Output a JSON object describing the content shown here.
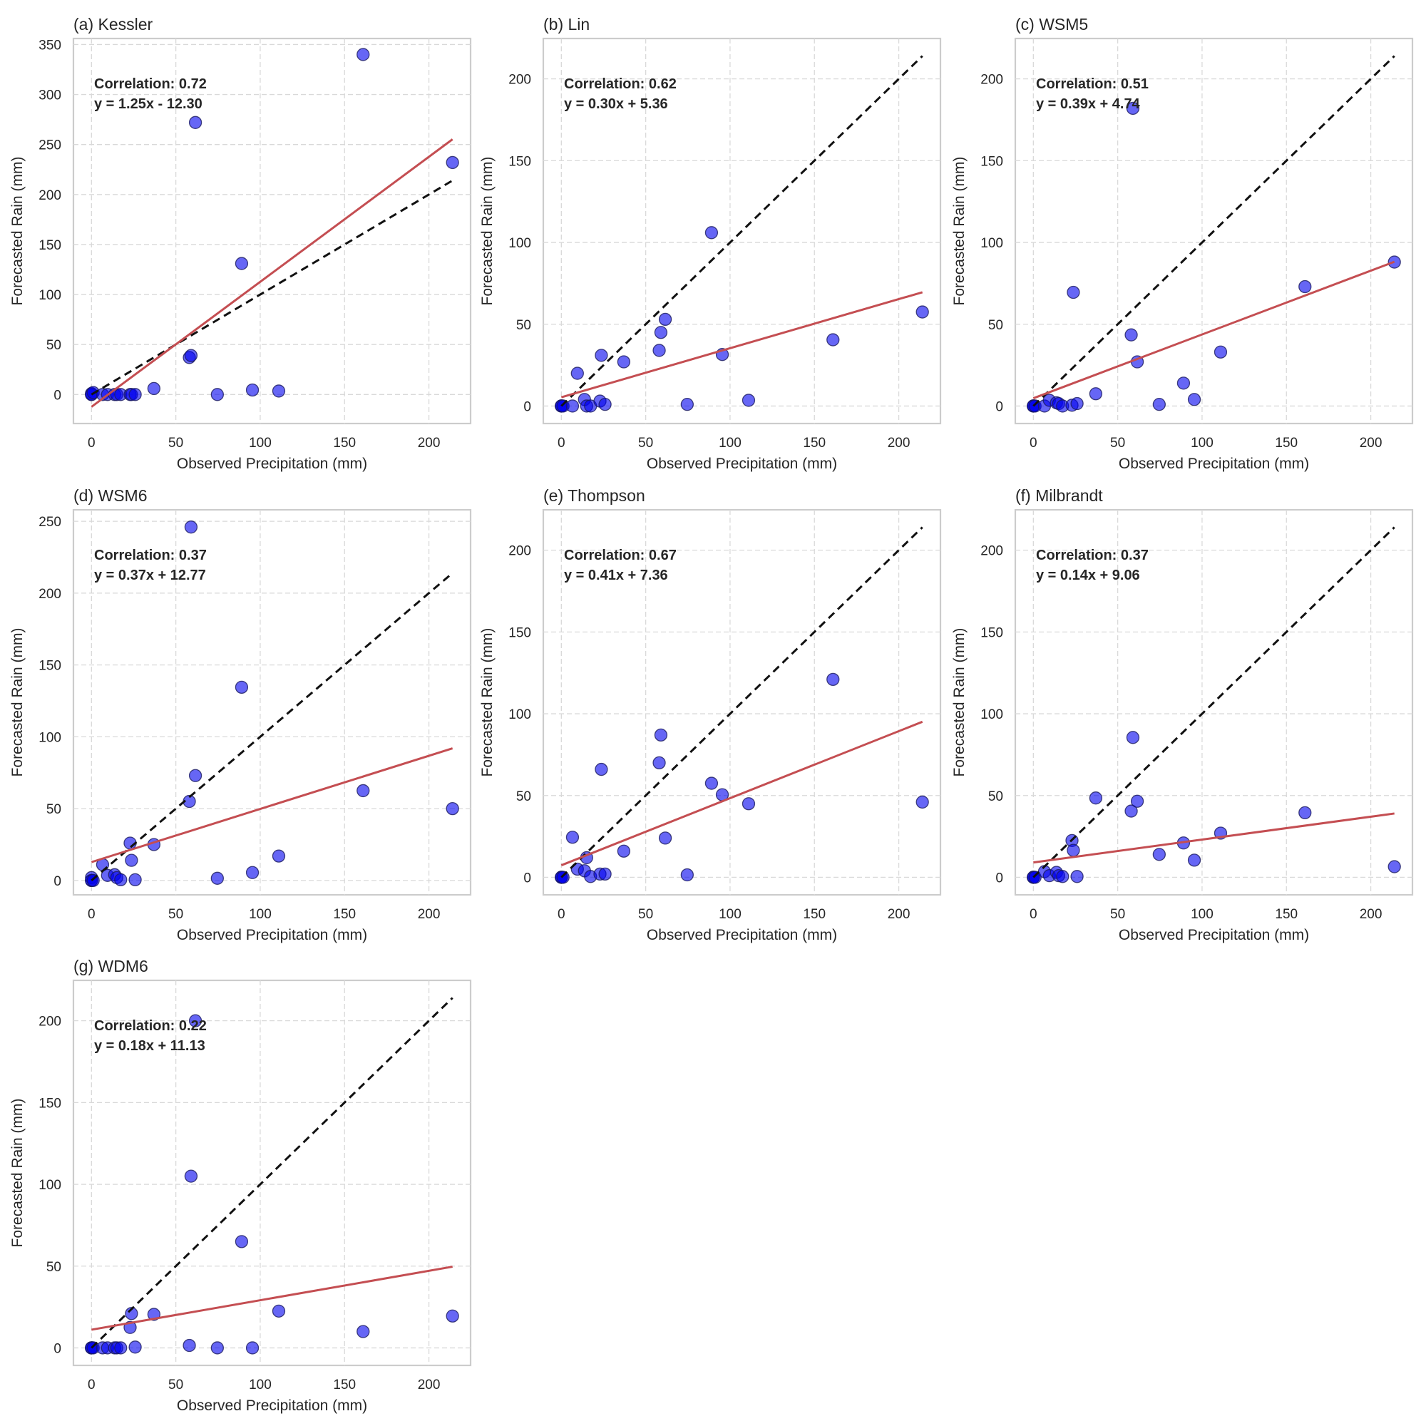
{
  "chart_data": [
    {
      "type": "scatter",
      "title": "(a) Kessler",
      "xlabel": "Observed Precipitation (mm)",
      "ylabel": "Forecasted Rain (mm)",
      "xlim": [
        -10.7,
        224.7
      ],
      "ylim": [
        -29,
        356
      ],
      "xticks": [
        0,
        50,
        100,
        150,
        200
      ],
      "yticks": [
        0,
        50,
        100,
        150,
        200,
        250,
        300,
        350
      ],
      "grid": true,
      "annotation": [
        "Correlation: 0.72",
        "y = 1.25x - 12.30"
      ],
      "correlation": 0.72,
      "fit": {
        "slope": 1.25,
        "intercept": -12.3
      },
      "reference_line": {
        "label": "1:1",
        "from": 0,
        "to": 214
      },
      "x": [
        0,
        0,
        0,
        1,
        6.6,
        9.5,
        13.7,
        15,
        17.3,
        22.9,
        23.7,
        25.9,
        37,
        58,
        59,
        61.6,
        74.6,
        89,
        95.4,
        111,
        161,
        214
      ],
      "y": [
        0,
        1,
        0,
        2,
        0,
        0,
        0,
        0,
        0,
        0,
        0,
        0,
        6,
        37,
        39,
        272,
        0,
        131,
        4.5,
        3.5,
        340,
        232
      ]
    },
    {
      "type": "scatter",
      "title": "(b) Lin",
      "xlabel": "Observed Precipitation (mm)",
      "ylabel": "Forecasted Rain (mm)",
      "xlim": [
        -10.7,
        224.7
      ],
      "ylim": [
        -10.7,
        224.7
      ],
      "xticks": [
        0,
        50,
        100,
        150,
        200
      ],
      "yticks": [
        0,
        50,
        100,
        150,
        200
      ],
      "grid": true,
      "annotation": [
        "Correlation: 0.62",
        "y = 0.30x + 5.36"
      ],
      "correlation": 0.62,
      "fit": {
        "slope": 0.3,
        "intercept": 5.36
      },
      "reference_line": {
        "label": "1:1",
        "from": 0,
        "to": 214
      },
      "x": [
        0,
        0,
        0,
        1,
        6.6,
        9.5,
        13.7,
        15,
        17.3,
        22.9,
        23.7,
        25.9,
        37,
        58,
        59,
        61.6,
        74.6,
        89,
        95.4,
        111,
        161,
        214
      ],
      "y": [
        0,
        0,
        0,
        0,
        0,
        20,
        4,
        0,
        0,
        3,
        31,
        1,
        27,
        34,
        45,
        53,
        1,
        106,
        31.5,
        3.5,
        40.5,
        57.5
      ]
    },
    {
      "type": "scatter",
      "title": "(c) WSM5",
      "xlabel": "Observed Precipitation (mm)",
      "ylabel": "Forecasted Rain (mm)",
      "xlim": [
        -10.7,
        224.7
      ],
      "ylim": [
        -10.7,
        224.7
      ],
      "xticks": [
        0,
        50,
        100,
        150,
        200
      ],
      "yticks": [
        0,
        50,
        100,
        150,
        200
      ],
      "grid": true,
      "annotation": [
        "Correlation: 0.51",
        "y = 0.39x + 4.74"
      ],
      "correlation": 0.51,
      "fit": {
        "slope": 0.39,
        "intercept": 4.74
      },
      "reference_line": {
        "label": "1:1",
        "from": 0,
        "to": 214
      },
      "x": [
        0,
        0,
        0,
        1,
        6.6,
        9.5,
        13.7,
        15,
        17.3,
        22.9,
        23.7,
        25.9,
        37,
        58,
        59,
        61.6,
        74.6,
        89,
        95.4,
        111,
        161,
        214
      ],
      "y": [
        0,
        0,
        0,
        0,
        0,
        3.5,
        2,
        1.5,
        0,
        0.5,
        69.5,
        1.5,
        7.5,
        43.5,
        182,
        27,
        1,
        14,
        4,
        33,
        73,
        88
      ]
    },
    {
      "type": "scatter",
      "title": "(d) WSM6",
      "xlabel": "Observed Precipitation (mm)",
      "ylabel": "Forecasted Rain (mm)",
      "xlim": [
        -10.7,
        224.7
      ],
      "ylim": [
        -10,
        258
      ],
      "xticks": [
        0,
        50,
        100,
        150,
        200
      ],
      "yticks": [
        0,
        50,
        100,
        150,
        200,
        250
      ],
      "grid": true,
      "annotation": [
        "Correlation: 0.37",
        "y = 0.37x + 12.77"
      ],
      "correlation": 0.37,
      "fit": {
        "slope": 0.37,
        "intercept": 12.77
      },
      "reference_line": {
        "label": "1:1",
        "from": 0,
        "to": 214
      },
      "x": [
        0,
        0,
        0,
        1,
        6.6,
        9.5,
        13.7,
        15,
        17.3,
        22.9,
        23.7,
        25.9,
        37,
        58,
        59,
        61.6,
        74.6,
        89,
        95.4,
        111,
        161,
        214
      ],
      "y": [
        0,
        2,
        0,
        0,
        11,
        3.5,
        4,
        2,
        0.5,
        26,
        14,
        0.5,
        25,
        55,
        246,
        73,
        1.5,
        134.5,
        5.5,
        17,
        62.5,
        50
      ]
    },
    {
      "type": "scatter",
      "title": "(e) Thompson",
      "xlabel": "Observed Precipitation (mm)",
      "ylabel": "Forecasted Rain (mm)",
      "xlim": [
        -10.7,
        224.7
      ],
      "ylim": [
        -10.7,
        224.7
      ],
      "xticks": [
        0,
        50,
        100,
        150,
        200
      ],
      "yticks": [
        0,
        50,
        100,
        150,
        200
      ],
      "grid": true,
      "annotation": [
        "Correlation: 0.67",
        "y = 0.41x + 7.36"
      ],
      "correlation": 0.67,
      "fit": {
        "slope": 0.41,
        "intercept": 7.36
      },
      "reference_line": {
        "label": "1:1",
        "from": 0,
        "to": 214
      },
      "x": [
        0,
        0,
        0,
        1,
        6.6,
        9.5,
        13.7,
        15,
        17.3,
        22.9,
        23.7,
        25.9,
        37,
        58,
        59,
        61.6,
        74.6,
        89,
        95.4,
        111,
        161,
        214
      ],
      "y": [
        0,
        0,
        0,
        0,
        24.5,
        5,
        4,
        12,
        0.5,
        2,
        66,
        2,
        16,
        70,
        87,
        24,
        1.5,
        57.5,
        50.5,
        45,
        121,
        46
      ]
    },
    {
      "type": "scatter",
      "title": "(f) Milbrandt",
      "xlabel": "Observed Precipitation (mm)",
      "ylabel": "Forecasted Rain (mm)",
      "xlim": [
        -10.7,
        224.7
      ],
      "ylim": [
        -10.7,
        224.7
      ],
      "xticks": [
        0,
        50,
        100,
        150,
        200
      ],
      "yticks": [
        0,
        50,
        100,
        150,
        200
      ],
      "grid": true,
      "annotation": [
        "Correlation: 0.37",
        "y = 0.14x + 9.06"
      ],
      "correlation": 0.37,
      "fit": {
        "slope": 0.14,
        "intercept": 9.06
      },
      "reference_line": {
        "label": "1:1",
        "from": 0,
        "to": 214
      },
      "x": [
        0,
        0,
        0,
        1,
        6.6,
        9.5,
        13.7,
        15,
        17.3,
        22.9,
        23.7,
        25.9,
        37,
        58,
        59,
        61.6,
        74.6,
        89,
        95.4,
        111,
        161,
        214
      ],
      "y": [
        0,
        0,
        0,
        0,
        3.5,
        1,
        3,
        1,
        0.5,
        22.5,
        16.5,
        0.5,
        48.5,
        40.5,
        85.5,
        46.5,
        14,
        21,
        10.5,
        27,
        39.5,
        6.5
      ]
    },
    {
      "type": "scatter",
      "title": "(g) WDM6",
      "xlabel": "Observed Precipitation (mm)",
      "ylabel": "Forecasted Rain (mm)",
      "xlim": [
        -10.7,
        224.7
      ],
      "ylim": [
        -10.7,
        224.7
      ],
      "xticks": [
        0,
        50,
        100,
        150,
        200
      ],
      "yticks": [
        0,
        50,
        100,
        150,
        200
      ],
      "grid": true,
      "annotation": [
        "Correlation: 0.22",
        "y = 0.18x + 11.13"
      ],
      "correlation": 0.22,
      "fit": {
        "slope": 0.18,
        "intercept": 11.13
      },
      "reference_line": {
        "label": "1:1",
        "from": 0,
        "to": 214
      },
      "x": [
        0,
        0,
        0,
        1,
        6.6,
        9.5,
        13.7,
        15,
        17.3,
        22.9,
        23.7,
        25.9,
        37,
        58,
        59,
        61.6,
        74.6,
        89,
        95.4,
        111,
        161,
        214
      ],
      "y": [
        0,
        0,
        0,
        0,
        0,
        0,
        0,
        0,
        0,
        12.5,
        21,
        0.5,
        20.5,
        1.5,
        105,
        200,
        0,
        65,
        0,
        22.5,
        10,
        19.5
      ]
    }
  ],
  "colors": {
    "points": "#0000ee",
    "fit_line": "#c44e52",
    "reference_line": "#111111",
    "grid": "#d9d9d9",
    "frame": "#cccccc"
  }
}
